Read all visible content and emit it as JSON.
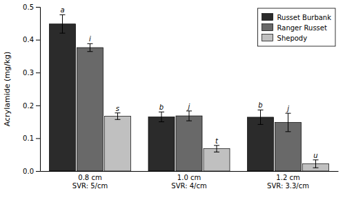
{
  "chart_data": {
    "type": "bar",
    "categories": [
      "0.8 cm\nSVR: 5/cm",
      "1.0 cm\nSVR: 4/cm",
      "1.2 cm\nSVR: 3.3/cm"
    ],
    "series": [
      {
        "name": "Russet Burbank",
        "color": "#2b2b2b",
        "values": [
          0.448,
          0.165,
          0.164
        ],
        "errors": [
          0.028,
          0.015,
          0.022
        ],
        "letter_labels": [
          "a",
          "b",
          "b"
        ]
      },
      {
        "name": "Ranger Russet",
        "color": "#696969",
        "values": [
          0.376,
          0.168,
          0.148
        ],
        "errors": [
          0.012,
          0.015,
          0.028
        ],
        "letter_labels": [
          "i",
          "j",
          "j"
        ]
      },
      {
        "name": "Shepody",
        "color": "#c0c0c0",
        "values": [
          0.167,
          0.068,
          0.022
        ],
        "errors": [
          0.01,
          0.01,
          0.012
        ],
        "letter_labels": [
          "s",
          "t",
          "u"
        ]
      }
    ],
    "ylabel": "Acrylamide (mg/kg)",
    "ylim": [
      0,
      0.5
    ],
    "yticks": [
      {
        "value": 0,
        "label": "0.0"
      },
      0.1,
      0.2,
      0.3,
      0.4,
      0.5
    ],
    "legend": "upper-right",
    "grid": false
  }
}
